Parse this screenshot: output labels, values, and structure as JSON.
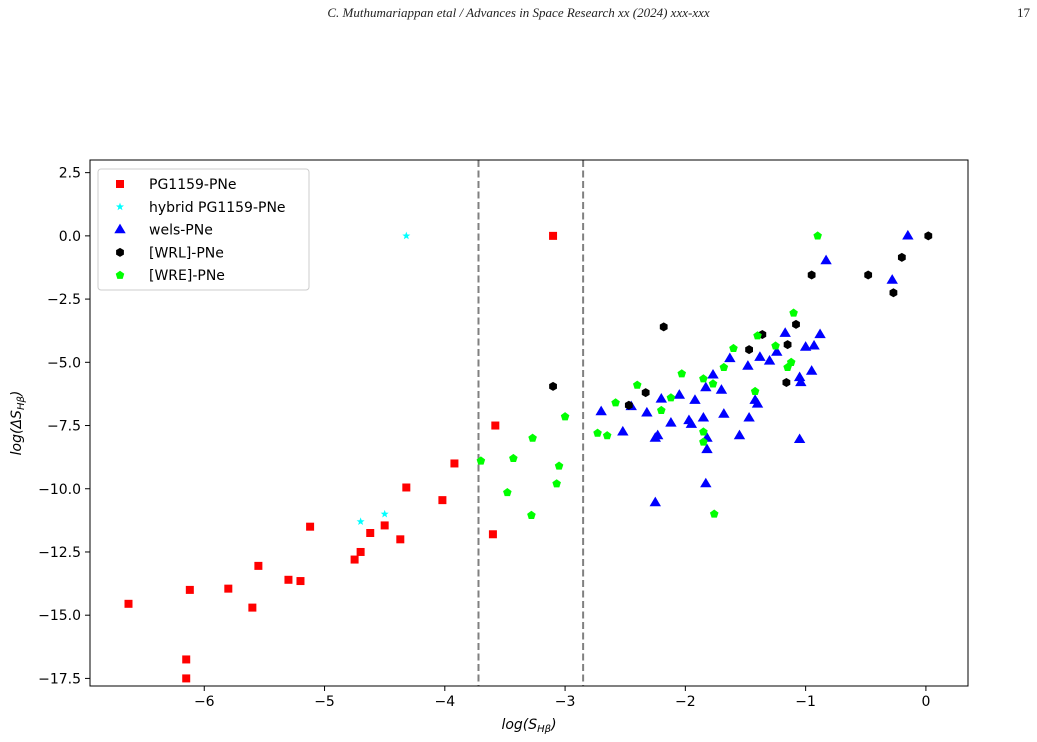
{
  "header": {
    "running_head": "C. Muthumariappan etal / Advances in Space Research xx (2024) xxx-xxx",
    "page_number": "17"
  },
  "chart_data": {
    "type": "scatter",
    "title": "",
    "xlabel": "log(S",
    "xlabel_sub": "Hβ",
    "ylabel": "log(ΔS",
    "ylabel_sub": "Hβ",
    "xlim": [
      -6.95,
      0.35
    ],
    "ylim": [
      -17.8,
      3.0
    ],
    "xticks": [
      -6,
      -5,
      -4,
      -3,
      -2,
      -1,
      0
    ],
    "xtick_labels": [
      "−6",
      "−5",
      "−4",
      "−3",
      "−2",
      "−1",
      "0"
    ],
    "yticks": [
      2.5,
      0.0,
      -2.5,
      -5.0,
      -7.5,
      -10.0,
      -12.5,
      -15.0,
      -17.5
    ],
    "ytick_labels": [
      "2.5",
      "0.0",
      "−2.5",
      "−5.0",
      "−7.5",
      "−10.0",
      "−12.5",
      "−15.0",
      "−17.5"
    ],
    "grid": false,
    "legend_position": "top-left",
    "vlines": [
      -3.72,
      -2.85
    ],
    "vline_color": "#808080",
    "series": [
      {
        "name": "PG1159-PNe",
        "marker": "square",
        "color": "#ff0000",
        "points": [
          [
            -6.63,
            -14.55
          ],
          [
            -6.15,
            -17.5
          ],
          [
            -6.15,
            -16.75
          ],
          [
            -6.12,
            -14.0
          ],
          [
            -5.8,
            -13.95
          ],
          [
            -5.6,
            -14.7
          ],
          [
            -5.55,
            -13.05
          ],
          [
            -5.3,
            -13.6
          ],
          [
            -5.2,
            -13.65
          ],
          [
            -5.12,
            -11.5
          ],
          [
            -4.75,
            -12.8
          ],
          [
            -4.7,
            -12.5
          ],
          [
            -4.62,
            -11.75
          ],
          [
            -4.5,
            -11.45
          ],
          [
            -4.37,
            -12.0
          ],
          [
            -4.32,
            -9.95
          ],
          [
            -4.02,
            -10.45
          ],
          [
            -3.92,
            -9.0
          ],
          [
            -3.6,
            -11.8
          ],
          [
            -3.58,
            -7.5
          ],
          [
            -3.1,
            0.0
          ]
        ]
      },
      {
        "name": "hybrid PG1159-PNe",
        "marker": "star",
        "color": "#00ffff",
        "points": [
          [
            -4.32,
            0.0
          ],
          [
            -4.7,
            -11.3
          ],
          [
            -4.5,
            -11.0
          ]
        ]
      },
      {
        "name": "wels-PNe",
        "marker": "triangle",
        "color": "#0000ff",
        "points": [
          [
            -2.7,
            -6.95
          ],
          [
            -2.52,
            -7.75
          ],
          [
            -2.45,
            -6.75
          ],
          [
            -2.32,
            -7.0
          ],
          [
            -2.25,
            -8.0
          ],
          [
            -2.23,
            -7.9
          ],
          [
            -2.2,
            -6.45
          ],
          [
            -2.25,
            -10.55
          ],
          [
            -2.12,
            -7.4
          ],
          [
            -2.05,
            -6.3
          ],
          [
            -1.97,
            -7.3
          ],
          [
            -1.95,
            -7.45
          ],
          [
            -1.92,
            -6.5
          ],
          [
            -1.85,
            -7.2
          ],
          [
            -1.83,
            -6.0
          ],
          [
            -1.82,
            -8.0
          ],
          [
            -1.82,
            -8.45
          ],
          [
            -1.83,
            -9.8
          ],
          [
            -1.77,
            -5.5
          ],
          [
            -1.7,
            -6.1
          ],
          [
            -1.68,
            -7.05
          ],
          [
            -1.63,
            -4.85
          ],
          [
            -1.55,
            -7.9
          ],
          [
            -1.48,
            -5.15
          ],
          [
            -1.47,
            -7.2
          ],
          [
            -1.42,
            -6.5
          ],
          [
            -1.4,
            -6.65
          ],
          [
            -1.38,
            -4.8
          ],
          [
            -1.3,
            -4.95
          ],
          [
            -1.24,
            -4.6
          ],
          [
            -1.17,
            -3.85
          ],
          [
            -1.05,
            -5.6
          ],
          [
            -1.04,
            -5.8
          ],
          [
            -1.05,
            -8.05
          ],
          [
            -1.0,
            -4.4
          ],
          [
            -0.95,
            -5.35
          ],
          [
            -0.93,
            -4.35
          ],
          [
            -0.88,
            -3.9
          ],
          [
            -0.83,
            -0.98
          ],
          [
            -0.28,
            -1.75
          ],
          [
            -0.15,
            0.0
          ]
        ]
      },
      {
        "name": "[WRL]-PNe",
        "marker": "hexagon",
        "color": "#000000",
        "points": [
          [
            -3.1,
            -5.95
          ],
          [
            -2.47,
            -6.7
          ],
          [
            -2.33,
            -6.2
          ],
          [
            -2.18,
            -3.6
          ],
          [
            -1.47,
            -4.5
          ],
          [
            -1.36,
            -3.9
          ],
          [
            -1.16,
            -5.8
          ],
          [
            -1.15,
            -4.3
          ],
          [
            -1.08,
            -3.5
          ],
          [
            -0.95,
            -1.55
          ],
          [
            -0.48,
            -1.55
          ],
          [
            -0.27,
            -2.25
          ],
          [
            -0.2,
            -0.85
          ],
          [
            0.02,
            0.0
          ]
        ]
      },
      {
        "name": "[WRE]-PNe",
        "marker": "pentagon",
        "color": "#00ff00",
        "points": [
          [
            -3.7,
            -8.9
          ],
          [
            -3.48,
            -10.15
          ],
          [
            -3.43,
            -8.8
          ],
          [
            -3.28,
            -11.05
          ],
          [
            -3.27,
            -8.0
          ],
          [
            -3.07,
            -9.8
          ],
          [
            -3.05,
            -9.1
          ],
          [
            -3.0,
            -7.15
          ],
          [
            -2.73,
            -7.8
          ],
          [
            -2.65,
            -7.9
          ],
          [
            -2.58,
            -6.6
          ],
          [
            -2.4,
            -5.9
          ],
          [
            -2.2,
            -6.9
          ],
          [
            -2.12,
            -6.4
          ],
          [
            -2.03,
            -5.45
          ],
          [
            -1.85,
            -5.65
          ],
          [
            -1.85,
            -7.75
          ],
          [
            -1.85,
            -8.15
          ],
          [
            -1.77,
            -5.85
          ],
          [
            -1.76,
            -11.0
          ],
          [
            -1.68,
            -5.2
          ],
          [
            -1.6,
            -4.45
          ],
          [
            -1.42,
            -6.15
          ],
          [
            -1.4,
            -3.95
          ],
          [
            -1.25,
            -4.35
          ],
          [
            -1.15,
            -5.2
          ],
          [
            -1.12,
            -5.0
          ],
          [
            -1.1,
            -3.05
          ],
          [
            -0.9,
            0.0
          ]
        ]
      }
    ]
  }
}
